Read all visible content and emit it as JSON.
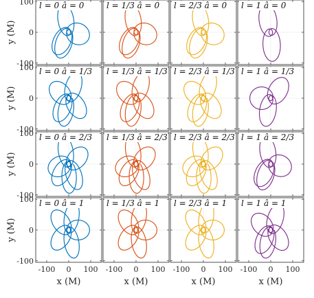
{
  "chart_data": {
    "type": "line",
    "layout": "4x4 grid of panels",
    "xlabel": "x (M)",
    "ylabel": "y (M)",
    "xlim": [
      -150,
      150
    ],
    "ylim": [
      -105,
      105
    ],
    "x_ticks": [
      "-100",
      "0",
      "100"
    ],
    "y_ticks": [
      "100",
      "0",
      "-100"
    ],
    "row_label_text": [
      "0",
      "1/3",
      "2/3",
      "1"
    ],
    "col_label_text": [
      "0",
      "1/3",
      "2/3",
      "1"
    ],
    "series_colors": [
      "#0072BD",
      "#D95319",
      "#EDB120",
      "#7E2F8E"
    ],
    "grid": true,
    "panels": [
      {
        "title": "l = 0  â = 0",
        "l": 0,
        "a": 0,
        "petals": 5,
        "precession": 2.51,
        "loops": 5
      },
      {
        "title": "l = 1/3  â = 0",
        "l": 0.333,
        "a": 0,
        "petals": 5,
        "precession": 2.51,
        "loops": 5
      },
      {
        "title": "l = 2/3  â = 0",
        "l": 0.667,
        "a": 0,
        "petals": 5,
        "precession": 2.51,
        "loops": 5
      },
      {
        "title": "l = 1  â = 0",
        "l": 1,
        "a": 0,
        "petals": 3,
        "precession": 2.2,
        "loops": 3
      },
      {
        "title": "l = 0  â = 1/3",
        "l": 0,
        "a": 0.333,
        "petals": 6,
        "precession": 2.15,
        "loops": 6
      },
      {
        "title": "l = 1/3  â = 1/3",
        "l": 0.333,
        "a": 0.333,
        "petals": 6,
        "precession": 2.15,
        "loops": 6
      },
      {
        "title": "l = 2/3  â = 1/3",
        "l": 0.667,
        "a": 0.333,
        "petals": 6,
        "precession": 2.15,
        "loops": 6
      },
      {
        "title": "l = 1  â = 1/3",
        "l": 1,
        "a": 0.333,
        "petals": 4,
        "precession": 1.65,
        "loops": 4
      },
      {
        "title": "l = 0  â = 2/3",
        "l": 0,
        "a": 0.667,
        "petals": 7,
        "precession": 1.92,
        "loops": 7
      },
      {
        "title": "l = 1/3  â = 2/3",
        "l": 0.333,
        "a": 0.667,
        "petals": 7,
        "precession": 1.92,
        "loops": 7
      },
      {
        "title": "l = 2/3  â = 2/3",
        "l": 0.667,
        "a": 0.667,
        "petals": 7,
        "precession": 1.92,
        "loops": 7
      },
      {
        "title": "l = 1  â = 2/3",
        "l": 1,
        "a": 0.667,
        "petals": 5,
        "precession": 1.4,
        "loops": 5
      },
      {
        "title": "l = 0  â = 1",
        "l": 0,
        "a": 1,
        "petals": 8,
        "precession": 1.71,
        "loops": 9
      },
      {
        "title": "l = 1/3  â = 1",
        "l": 0.333,
        "a": 1,
        "petals": 8,
        "precession": 1.71,
        "loops": 9
      },
      {
        "title": "l = 2/3  â = 1",
        "l": 0.667,
        "a": 1,
        "petals": 8,
        "precession": 1.71,
        "loops": 9
      },
      {
        "title": "l = 1  â = 1",
        "l": 1,
        "a": 1,
        "petals": 6,
        "precession": 1.25,
        "loops": 6
      }
    ],
    "orbit_shape": {
      "r_peri": 8,
      "r_apo": 95
    }
  }
}
